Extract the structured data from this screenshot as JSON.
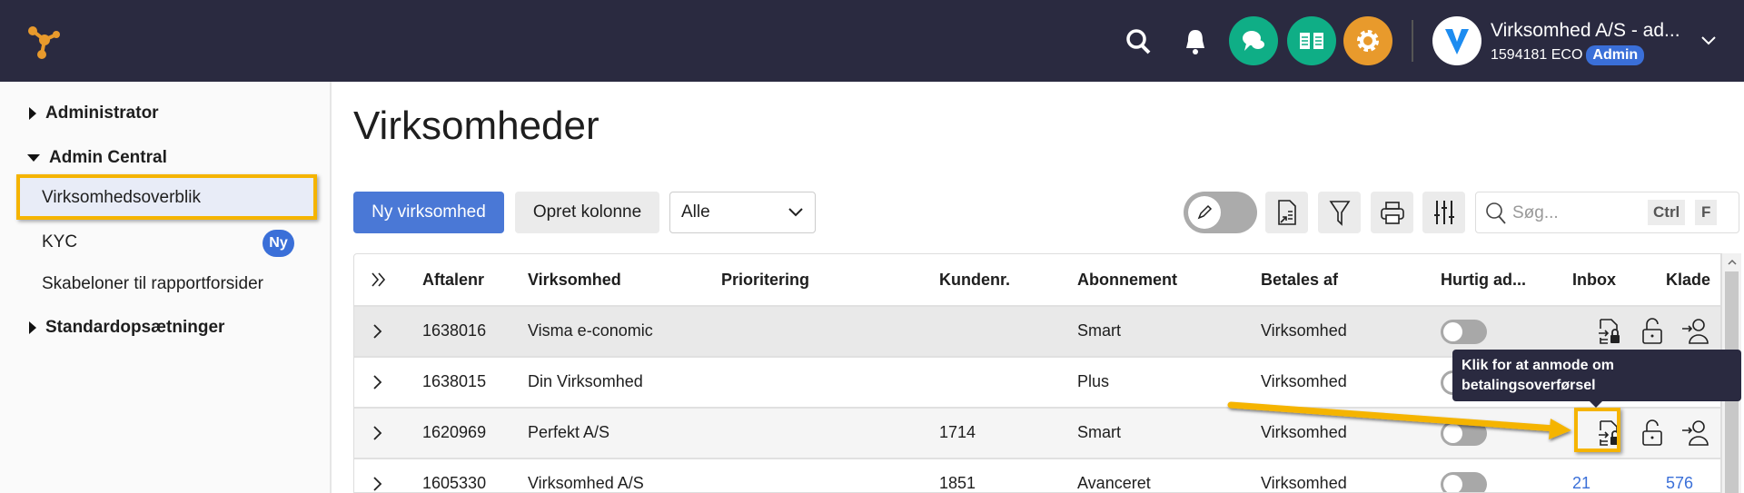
{
  "header": {
    "user_name": "Virksomhed A/S - ad...",
    "account": "1594181 ECO",
    "role_badge": "Admin",
    "icons": [
      "logo-icon",
      "search-icon",
      "bell-icon",
      "chat-icon",
      "book-icon",
      "gear-icon",
      "avatar-v-logo",
      "chevron-down-icon"
    ],
    "colors": {
      "bar": "#2a2a40",
      "chat": "#0fae86",
      "book": "#0fae86",
      "gear": "#e89a2c",
      "badge": "#3a6fd8"
    }
  },
  "sidebar": {
    "groups": [
      {
        "label": "Administrator",
        "expanded": false
      },
      {
        "label": "Admin Central",
        "expanded": true,
        "items": [
          {
            "label": "Virksomhedsoverblik",
            "active": true
          },
          {
            "label": "KYC",
            "badge": "Ny"
          },
          {
            "label": "Skabeloner til rapportforsider"
          }
        ]
      },
      {
        "label": "Standardopsætninger",
        "expanded": false
      }
    ]
  },
  "main": {
    "title": "Virksomheder",
    "new_button": "Ny virksomhed",
    "column_button": "Opret kolonne",
    "filter_select": "Alle",
    "search_placeholder": "Søg...",
    "shortcut_ctrl": "Ctrl",
    "shortcut_f": "F"
  },
  "table": {
    "columns": [
      "Aftalenr",
      "Virksomhed",
      "Prioritering",
      "Kundenr.",
      "Abonnement",
      "Betales af",
      "Hurtig ad...",
      "Inbox",
      "Klade"
    ],
    "rows": [
      {
        "aftalenr": "1638016",
        "virksomhed": "Visma e-conomic",
        "prioritering": "",
        "kundenr": "",
        "abonnement": "Smart",
        "betales_af": "Virksomhed",
        "hurtig": false,
        "inbox": "",
        "kladde": ""
      },
      {
        "aftalenr": "1638015",
        "virksomhed": "Din Virksomhed",
        "prioritering": "",
        "kundenr": "",
        "abonnement": "Plus",
        "betales_af": "Virksomhed",
        "hurtig": false,
        "inbox": "",
        "kladde": ""
      },
      {
        "aftalenr": "1620969",
        "virksomhed": "Perfekt A/S",
        "prioritering": "",
        "kundenr": "1714",
        "abonnement": "Smart",
        "betales_af": "Virksomhed",
        "hurtig": false,
        "inbox": "",
        "kladde": ""
      },
      {
        "aftalenr": "1605330",
        "virksomhed": "Virksomhed A/S",
        "prioritering": "",
        "kundenr": "1851",
        "abonnement": "Avanceret",
        "betales_af": "Virksomhed",
        "hurtig": false,
        "inbox": "21",
        "kladde": "576"
      }
    ]
  },
  "tooltip": {
    "text_line1": "Klik for at anmode om",
    "text_line2": "betalingsoverførsel"
  },
  "highlight_color": "#f5b400"
}
